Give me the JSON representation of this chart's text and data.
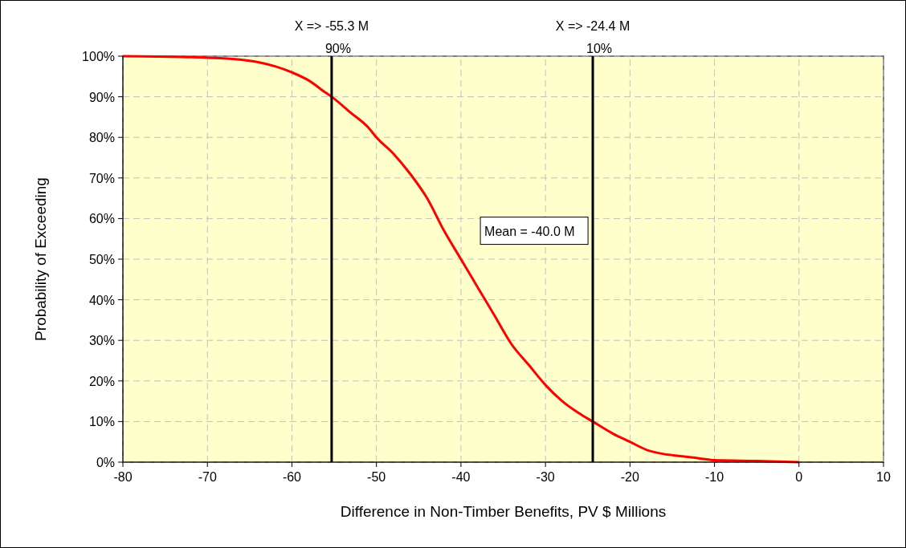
{
  "chart_data": {
    "type": "line",
    "xlabel": "Difference in Non-Timber Benefits, PV $ Millions",
    "ylabel": "Probability of Exceeding",
    "xlim": [
      -80,
      10
    ],
    "xticks": [
      -80,
      -70,
      -60,
      -50,
      -40,
      -30,
      -20,
      -10,
      0,
      10
    ],
    "ylim": [
      0,
      100
    ],
    "yticks": [
      {
        "value": 0,
        "label": "0%"
      },
      {
        "value": 10,
        "label": "10%"
      },
      {
        "value": 20,
        "label": "20%"
      },
      {
        "value": 30,
        "label": "30%"
      },
      {
        "value": 40,
        "label": "40%"
      },
      {
        "value": 50,
        "label": "50%"
      },
      {
        "value": 60,
        "label": "60%"
      },
      {
        "value": 70,
        "label": "70%"
      },
      {
        "value": 80,
        "label": "80%"
      },
      {
        "value": 90,
        "label": "90%"
      },
      {
        "value": 100,
        "label": "100%"
      }
    ],
    "grid": true,
    "line_style": "solid",
    "series": [
      {
        "color": "#ff0000",
        "x": [
          -80,
          -73,
          -67,
          -64,
          -62,
          -60,
          -58,
          -56,
          -55.3,
          -53,
          -51,
          -50,
          -48,
          -46,
          -44,
          -42,
          -40,
          -38,
          -36,
          -34,
          -32,
          -30,
          -28,
          -26,
          -24.4,
          -22,
          -20,
          -18,
          -16,
          -14,
          -12,
          -10,
          -5,
          0
        ],
        "values": [
          100,
          99.8,
          99.3,
          98.5,
          97.5,
          96,
          94,
          91,
          90,
          86,
          82.5,
          80,
          76,
          71,
          65,
          57,
          50,
          43,
          36,
          29,
          24,
          19,
          15,
          12,
          10,
          7,
          5,
          3,
          2,
          1.5,
          1,
          0.5,
          0.3,
          0
        ]
      }
    ],
    "ref_lines": [
      {
        "axis": "x",
        "value": -55.3,
        "label": "X => -55.3 M",
        "color": "#000000"
      },
      {
        "axis": "x",
        "value": -24.4,
        "label": "X => -24.4 M",
        "color": "#000000"
      }
    ],
    "annotations": [
      {
        "text": "90%",
        "x": -55.3,
        "y": 100
      },
      {
        "text": "10%",
        "x": -24.4,
        "y": 100
      },
      "Mean = -40.0 M"
    ]
  }
}
